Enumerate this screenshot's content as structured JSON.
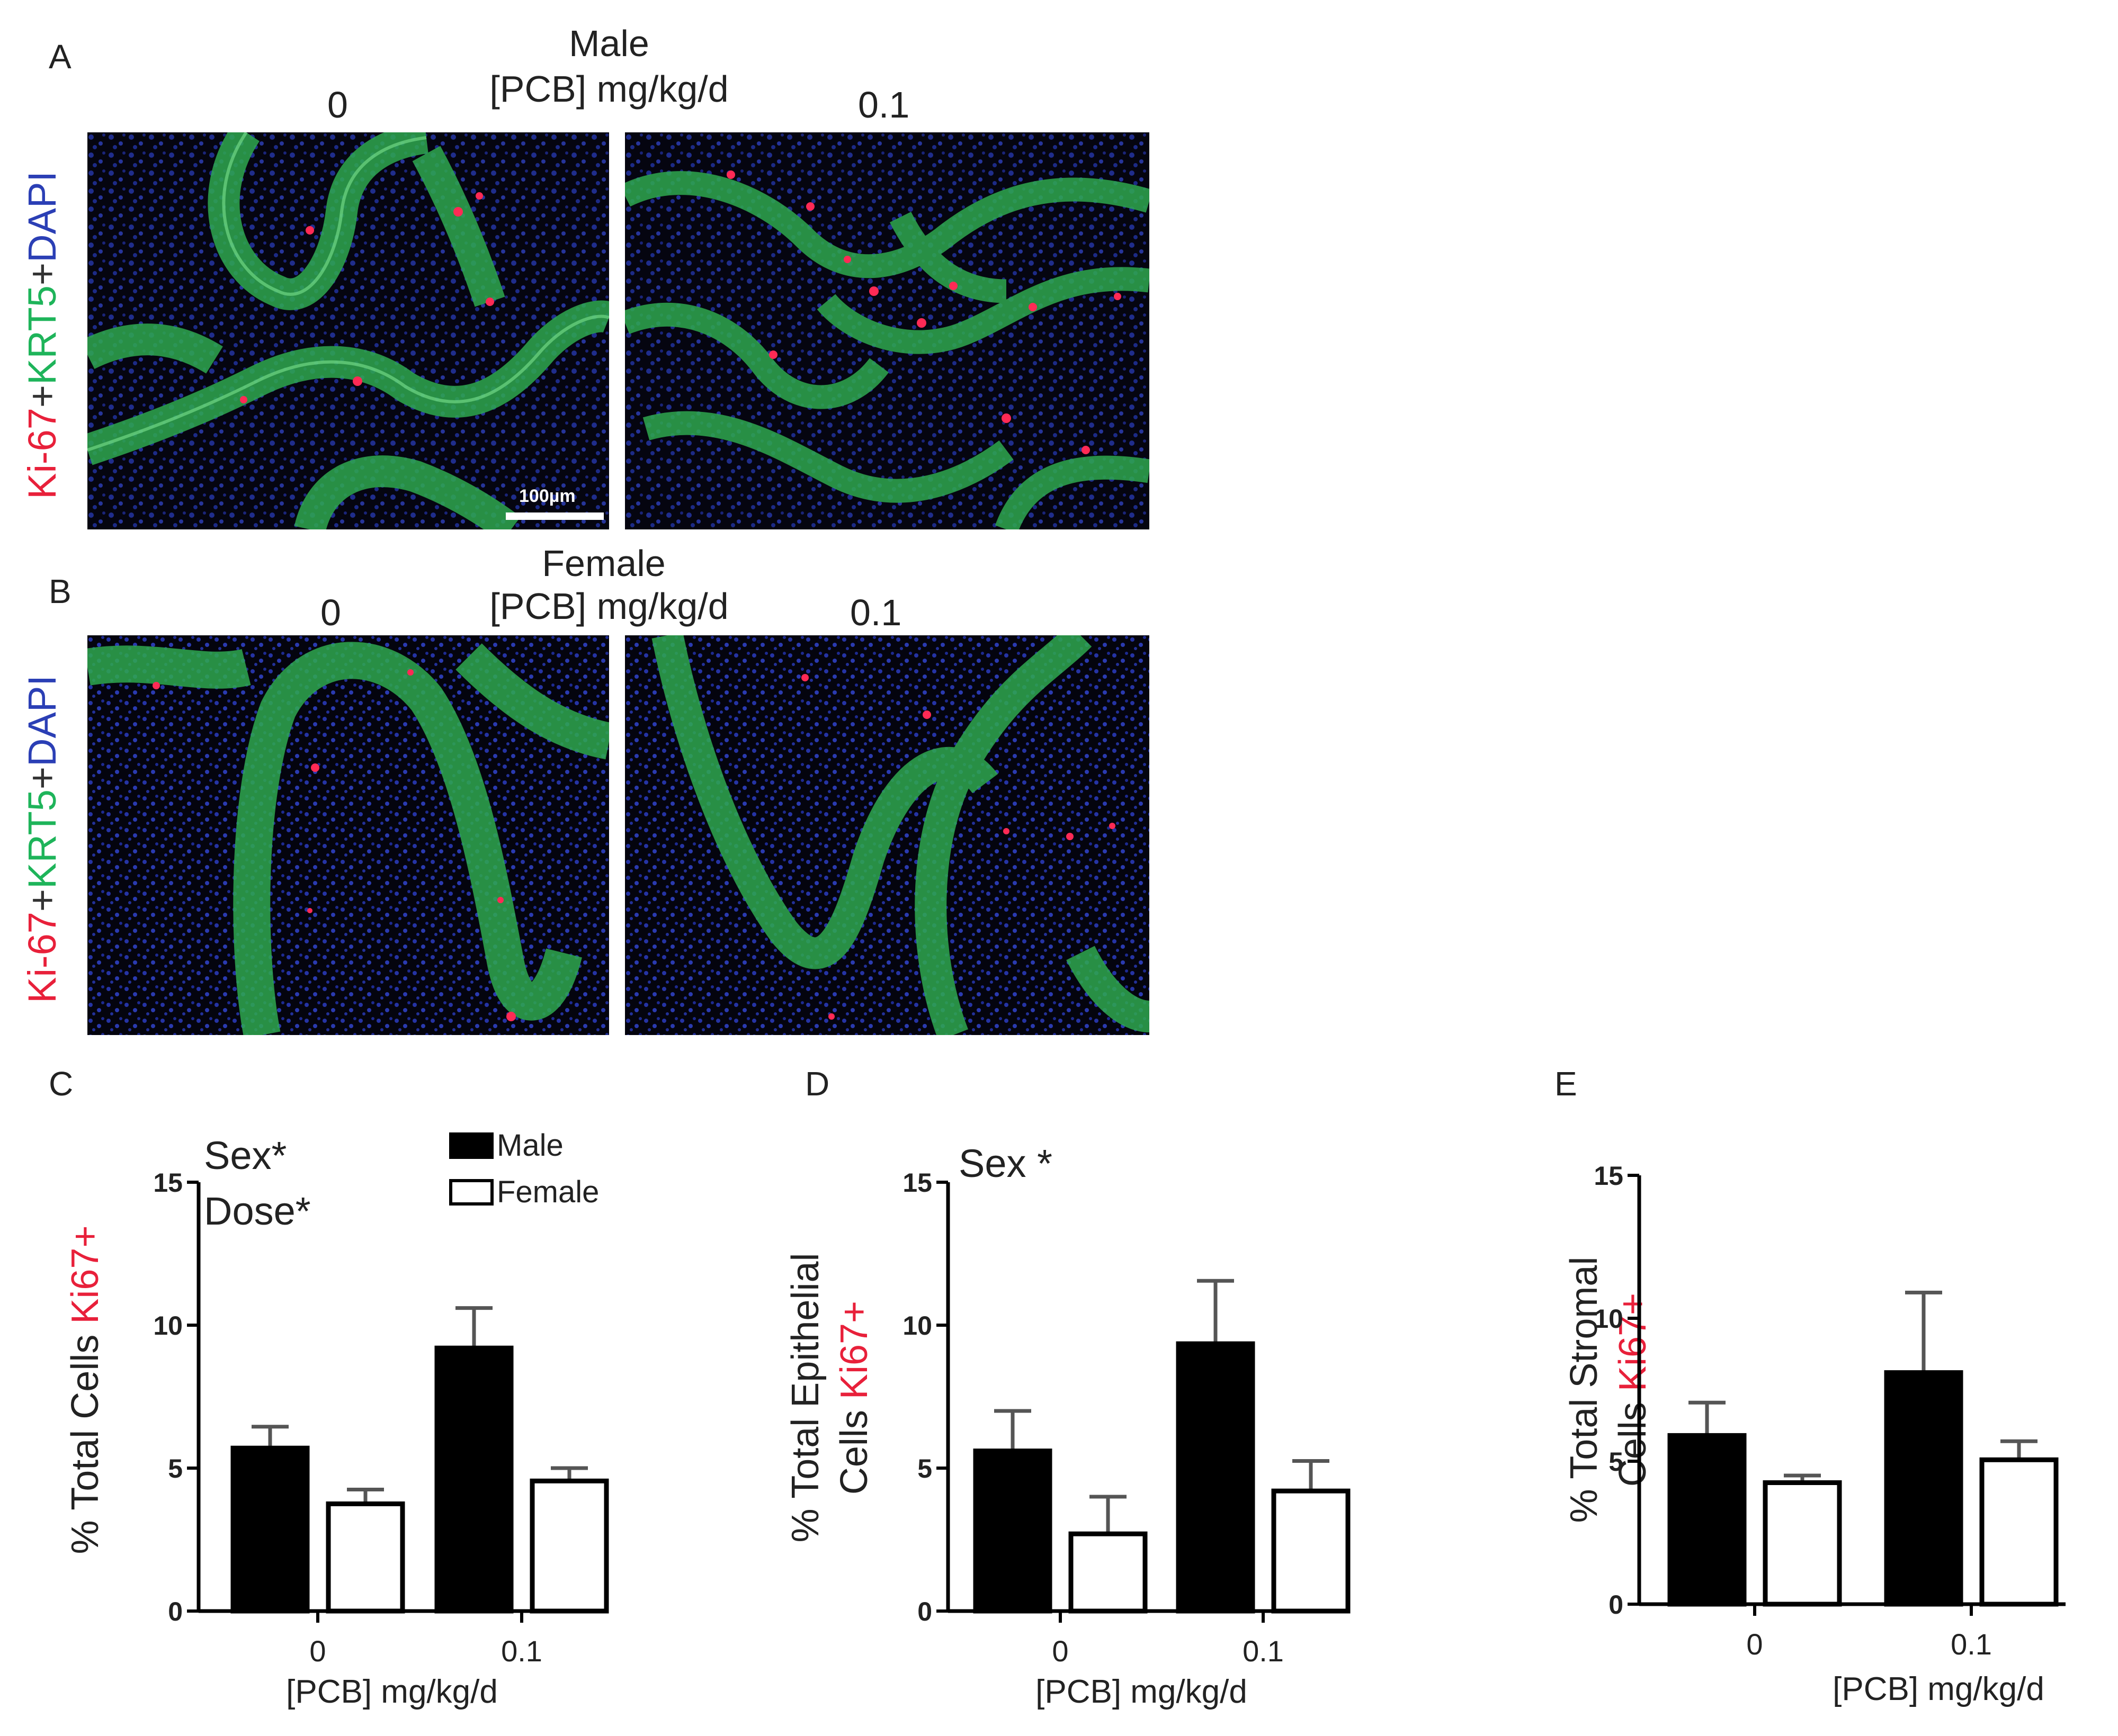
{
  "panels": {
    "A": {
      "letter": "A",
      "sex": "Male",
      "dose_header": "[PCB] mg/kg/d",
      "dose_left": "0",
      "dose_right": "0.1",
      "stain_parts": [
        "Ki-67",
        "+",
        "KRT5",
        "+",
        "DAPI"
      ],
      "scale_bar": "100µm"
    },
    "B": {
      "letter": "B",
      "sex": "Female",
      "dose_header": "[PCB] mg/kg/d",
      "dose_left": "0",
      "dose_right": "0.1",
      "stain_parts": [
        "Ki-67",
        "+",
        "KRT5",
        "+",
        "DAPI"
      ]
    }
  },
  "colors": {
    "ki67": "#e8203a",
    "krt5": "#1eb45a",
    "dapi": "#2b3fb5",
    "plus": "#333333",
    "male_bar": "#000000",
    "female_bar": "#ffffff"
  },
  "legend": {
    "male": "Male",
    "female": "Female"
  },
  "chart_data": [
    {
      "panel": "C",
      "type": "bar",
      "categories": [
        "0",
        "0.1"
      ],
      "series": [
        {
          "name": "Male",
          "values": [
            5.7,
            9.2
          ],
          "errors": [
            0.75,
            1.4
          ]
        },
        {
          "name": "Female",
          "values": [
            3.75,
            4.55
          ],
          "errors": [
            0.5,
            0.45
          ]
        }
      ],
      "ylabel_prefix": "% Total Cells ",
      "ylabel_highlight": "Ki67+",
      "xlabel": "[PCB] mg/kg/d",
      "ylim": [
        0,
        15
      ],
      "yticks": [
        "0",
        "5",
        "10",
        "15"
      ],
      "annotations": [
        "Sex*",
        "Dose*"
      ]
    },
    {
      "panel": "D",
      "type": "bar",
      "categories": [
        "0",
        "0.1"
      ],
      "series": [
        {
          "name": "Male",
          "values": [
            5.6,
            9.35
          ],
          "errors": [
            1.4,
            2.2
          ]
        },
        {
          "name": "Female",
          "values": [
            2.7,
            4.2
          ],
          "errors": [
            1.3,
            1.05
          ]
        }
      ],
      "ylabel_line1": "% Total Epithelial",
      "ylabel_line2_prefix": "Cells ",
      "ylabel_highlight": "Ki67+",
      "xlabel": "[PCB] mg/kg/d",
      "ylim": [
        0,
        15
      ],
      "yticks": [
        "0",
        "5",
        "10",
        "15"
      ],
      "annotations": [
        "Sex *"
      ]
    },
    {
      "panel": "E",
      "type": "bar",
      "categories": [
        "0",
        "0.1"
      ],
      "series": [
        {
          "name": "Male",
          "values": [
            5.9,
            8.1
          ],
          "errors": [
            1.15,
            2.8
          ]
        },
        {
          "name": "Female",
          "values": [
            4.25,
            5.05
          ],
          "errors": [
            0.25,
            0.65
          ]
        }
      ],
      "ylabel_line1": "% Total Stromal",
      "ylabel_line2_prefix": "Cells ",
      "ylabel_highlight": "Ki67+",
      "xlabel": "[PCB] mg/kg/d",
      "ylim": [
        0,
        15
      ],
      "yticks": [
        "0",
        "5",
        "10",
        "15"
      ],
      "annotations": []
    }
  ]
}
